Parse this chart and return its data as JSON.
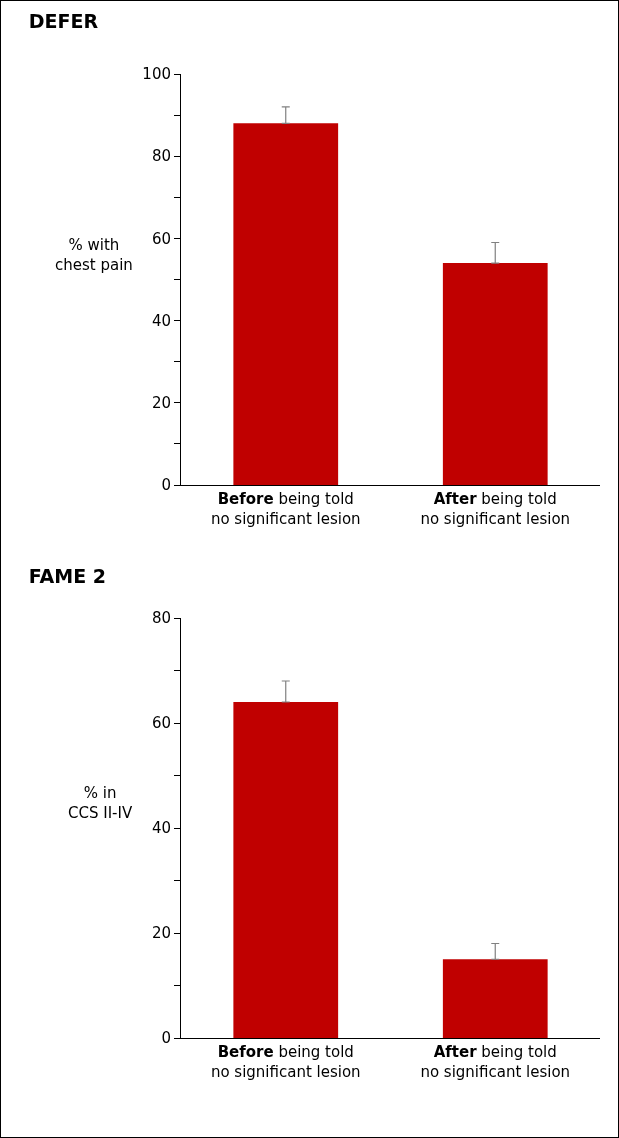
{
  "chart_data": [
    {
      "type": "bar",
      "title": "DEFER",
      "ylabel": "% with\nchest pain",
      "categories": [
        "Before being told\nno significant lesion",
        "After being told\nno significant lesion"
      ],
      "values": [
        88,
        54
      ],
      "errors": [
        [
          88,
          92
        ],
        [
          54,
          59
        ]
      ],
      "color": "#c00000",
      "ylim": [
        0,
        100
      ],
      "yticks": [
        0,
        {
          "value": 10,
          "label": null
        },
        20,
        {
          "value": 30,
          "label": null
        },
        40,
        {
          "value": 50,
          "label": null
        },
        60,
        {
          "value": 70,
          "label": null
        },
        80,
        {
          "value": 90,
          "label": null
        },
        100
      ]
    },
    {
      "type": "bar",
      "title": "FAME 2",
      "ylabel": "% in\nCCS II-IV",
      "categories": [
        "Before being told\nno significant lesion",
        "After being told\nno significant lesion"
      ],
      "values": [
        64,
        15
      ],
      "errors": [
        [
          64,
          68
        ],
        [
          15,
          18
        ]
      ],
      "color": "#c00000",
      "ylim": [
        0,
        80
      ],
      "yticks": [
        0,
        {
          "value": 10,
          "label": null
        },
        20,
        {
          "value": 30,
          "label": null
        },
        40,
        {
          "value": 50,
          "label": null
        },
        60,
        {
          "value": 70,
          "label": null
        },
        80
      ]
    }
  ]
}
